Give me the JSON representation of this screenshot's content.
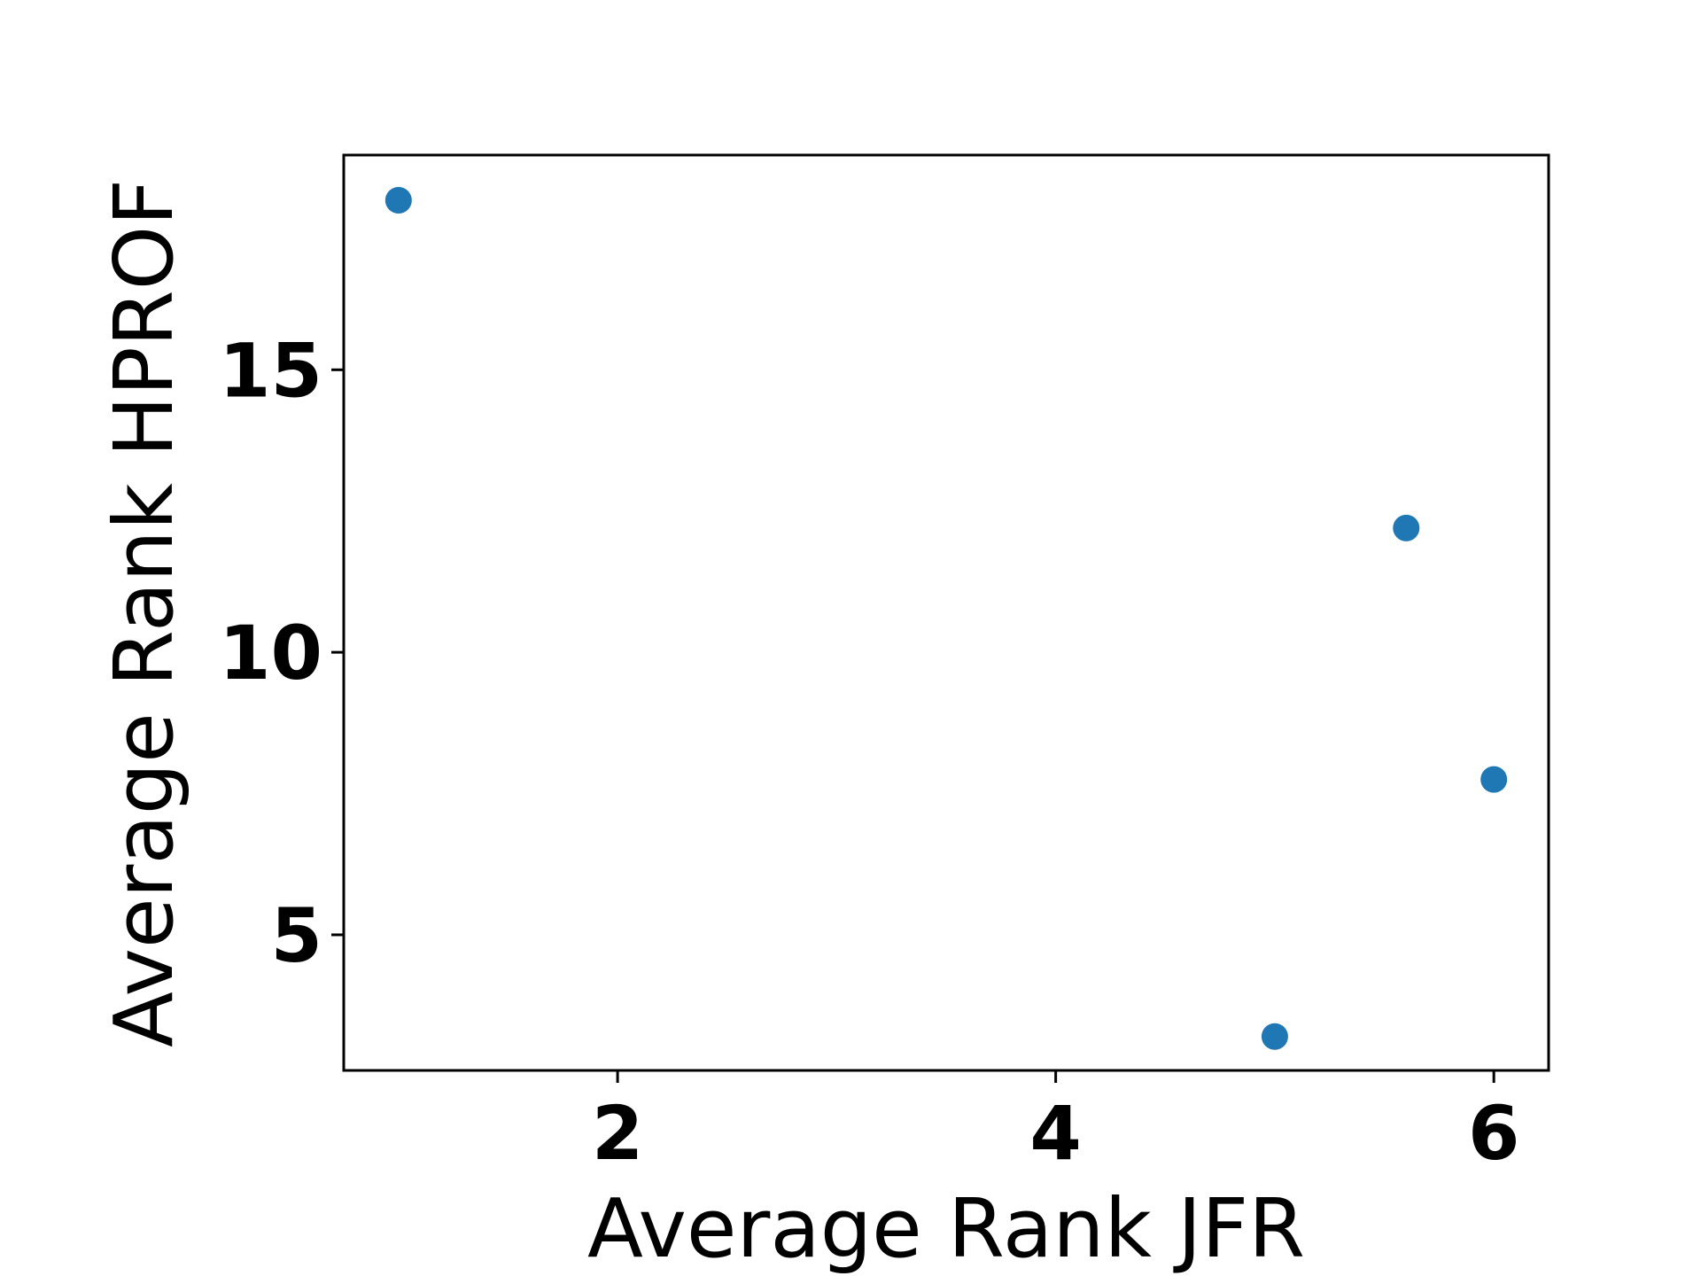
{
  "chart_data": {
    "type": "scatter",
    "title": "",
    "xlabel": "Average Rank JFR",
    "ylabel": "Average Rank HPROF",
    "xlim": [
      0.75,
      6.25
    ],
    "ylim": [
      2.6,
      18.8
    ],
    "xticks": [
      2,
      4,
      6
    ],
    "yticks": [
      5,
      10,
      15
    ],
    "grid": false,
    "legend": "none",
    "marker_color": "#1f77b4",
    "series": [
      {
        "x": [
          1.0,
          5.0,
          5.6,
          6.0
        ],
        "y": [
          18.0,
          3.2,
          12.2,
          7.75
        ]
      }
    ]
  }
}
